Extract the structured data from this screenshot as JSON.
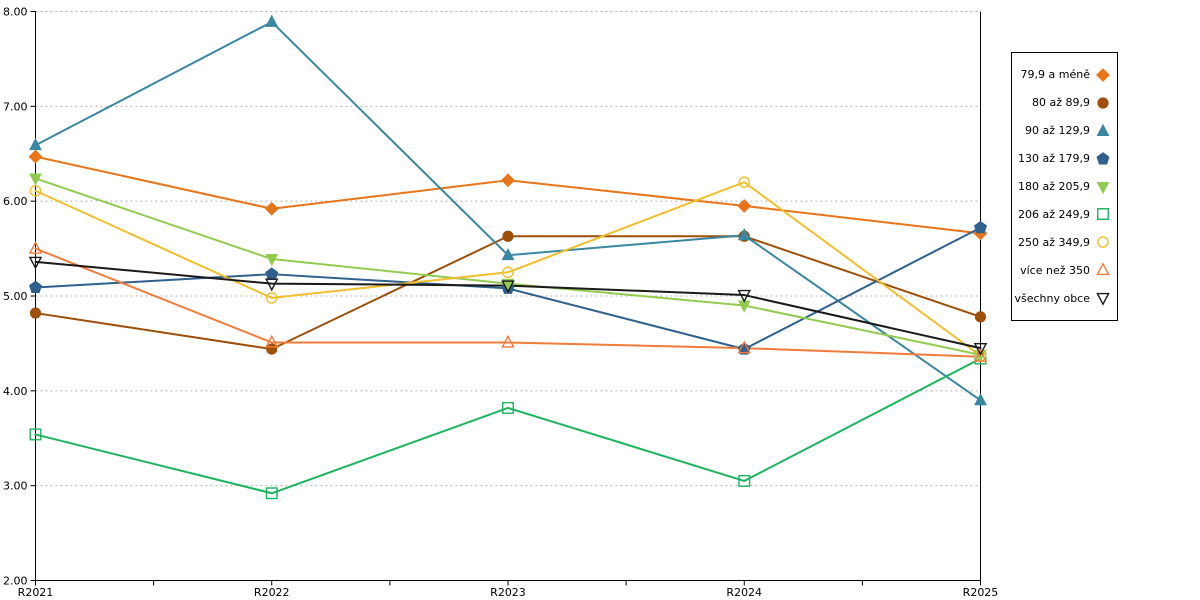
{
  "chart_data": {
    "type": "line",
    "title": "",
    "xlabel": "",
    "ylabel": "",
    "categories": [
      "R2021",
      "R2022",
      "R2023",
      "R2024",
      "R2025"
    ],
    "series": [
      {
        "name": "79,9 a méně",
        "color": "#E8751A",
        "marker": "diamond",
        "filled": true,
        "values": [
          6.47,
          5.92,
          6.22,
          5.95,
          5.66
        ]
      },
      {
        "name": "80 až 89,9",
        "color": "#9E4F0A",
        "marker": "circle",
        "filled": true,
        "values": [
          4.82,
          4.44,
          5.63,
          5.63,
          4.78
        ]
      },
      {
        "name": "90 až 129,9",
        "color": "#3A87A2",
        "marker": "triangle-up",
        "filled": true,
        "values": [
          6.59,
          7.89,
          5.43,
          5.64,
          3.9
        ]
      },
      {
        "name": "130 až 179,9",
        "color": "#2F608E",
        "marker": "pentagon",
        "filled": true,
        "values": [
          5.09,
          5.23,
          5.08,
          4.44,
          5.72
        ]
      },
      {
        "name": "180 až 205,9",
        "color": "#92CB50",
        "marker": "triangle-down",
        "filled": true,
        "values": [
          6.24,
          5.39,
          5.13,
          4.9,
          4.38
        ]
      },
      {
        "name": "206 až 249,9",
        "color": "#1CB45E",
        "marker": "square",
        "filled": false,
        "values": [
          3.54,
          2.92,
          3.82,
          3.05,
          4.34
        ]
      },
      {
        "name": "250 až 349,9",
        "color": "#F2BE2B",
        "marker": "circle",
        "filled": false,
        "values": [
          6.11,
          4.98,
          5.25,
          6.2,
          4.37
        ]
      },
      {
        "name": "více než 350",
        "color": "#F07C3C",
        "marker": "triangle-up",
        "filled": false,
        "values": [
          5.5,
          4.51,
          4.51,
          4.45,
          4.36
        ]
      },
      {
        "name": "všechny obce",
        "color": "#1A1A1A",
        "marker": "triangle-down",
        "filled": false,
        "values": [
          5.36,
          5.13,
          5.11,
          5.01,
          4.45
        ]
      }
    ],
    "ylim": [
      2,
      8
    ],
    "ytick_values": [
      2,
      3,
      4,
      5,
      6,
      7,
      8
    ],
    "ytick_labels": [
      "2.00",
      "3.00",
      "4.00",
      "5.00",
      "6.00",
      "7.00",
      "8.00"
    ],
    "grid": "horizontal-dotted",
    "gridline_color": "#ABABAB",
    "axis_color": "#000000",
    "legend_position": "right-box"
  }
}
